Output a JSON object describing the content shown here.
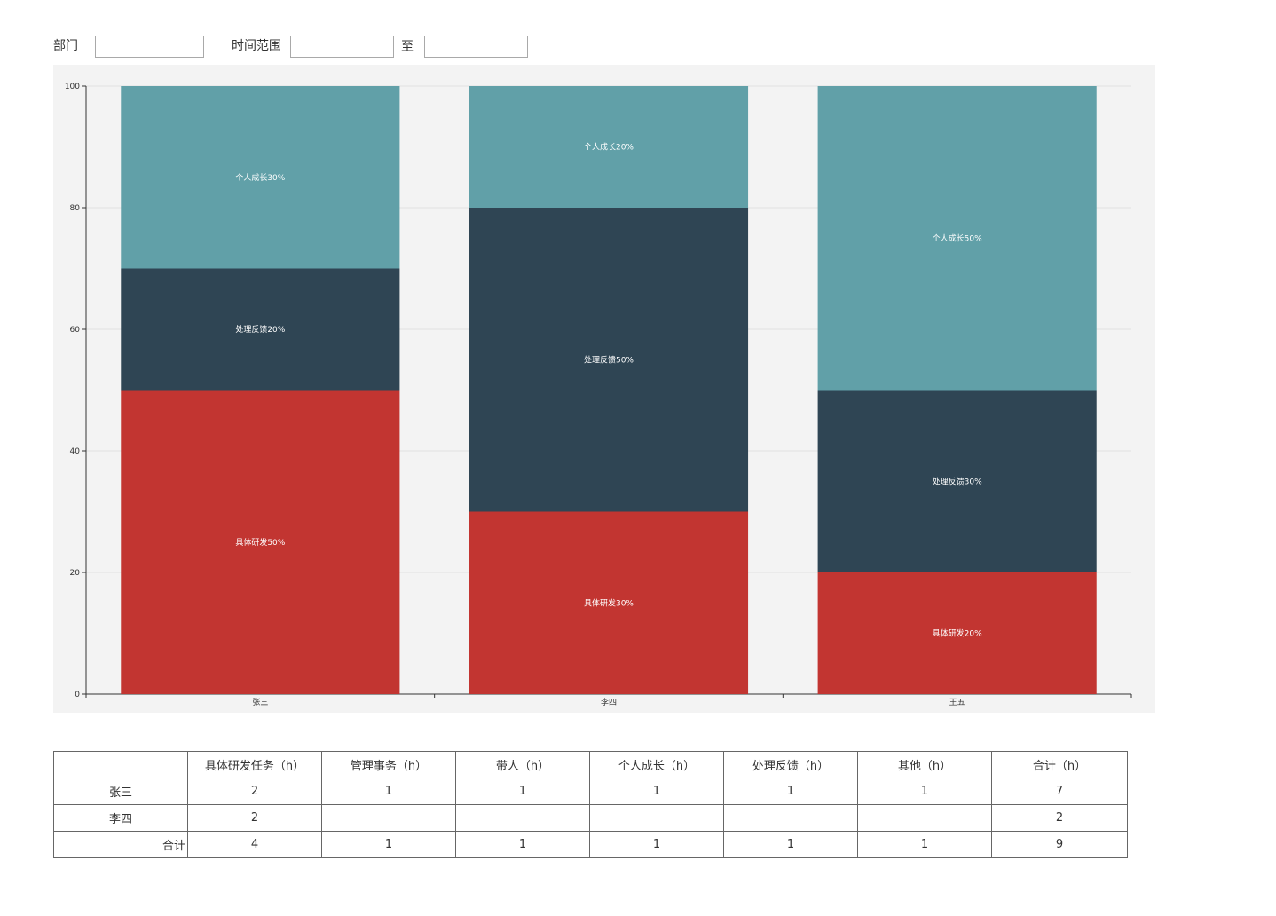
{
  "filters": {
    "department_label": "部门",
    "department_value": "",
    "time_range_label": "时间范围",
    "start_value": "",
    "to_label": "至",
    "end_value": ""
  },
  "colors": {
    "chart_bg": "#f3f3f3",
    "series": [
      "#c23531",
      "#2f4554",
      "#61a0a8"
    ]
  },
  "chart_data": {
    "type": "bar",
    "stacked": true,
    "categories": [
      "张三",
      "李四",
      "王五"
    ],
    "ylim": [
      0,
      100
    ],
    "yticks": [
      0,
      20,
      40,
      60,
      80,
      100
    ],
    "grid": true,
    "series": [
      {
        "name": "具体研发",
        "values": [
          50,
          30,
          20
        ],
        "labels": [
          "具体研发50%",
          "具体研发30%",
          "具体研发20%"
        ]
      },
      {
        "name": "处理反馈",
        "values": [
          20,
          50,
          30
        ],
        "labels": [
          "处理反馈20%",
          "处理反馈50%",
          "处理反馈30%"
        ]
      },
      {
        "name": "个人成长",
        "values": [
          30,
          20,
          50
        ],
        "labels": [
          "个人成长30%",
          "个人成长20%",
          "个人成长50%"
        ]
      }
    ]
  },
  "table": {
    "headers": [
      "",
      "具体研发任务（h）",
      "管理事务（h）",
      "带人（h）",
      "个人成长（h）",
      "处理反馈（h）",
      "其他（h）",
      "合计（h）"
    ],
    "rows": [
      {
        "name": "张三",
        "cells": [
          "2",
          "1",
          "1",
          "1",
          "1",
          "1",
          "7"
        ]
      },
      {
        "name": "李四",
        "cells": [
          "2",
          "",
          "",
          "",
          "",
          "",
          "2"
        ]
      }
    ],
    "total": {
      "name": "合计",
      "cells": [
        "4",
        "1",
        "1",
        "1",
        "1",
        "1",
        "9"
      ]
    }
  }
}
